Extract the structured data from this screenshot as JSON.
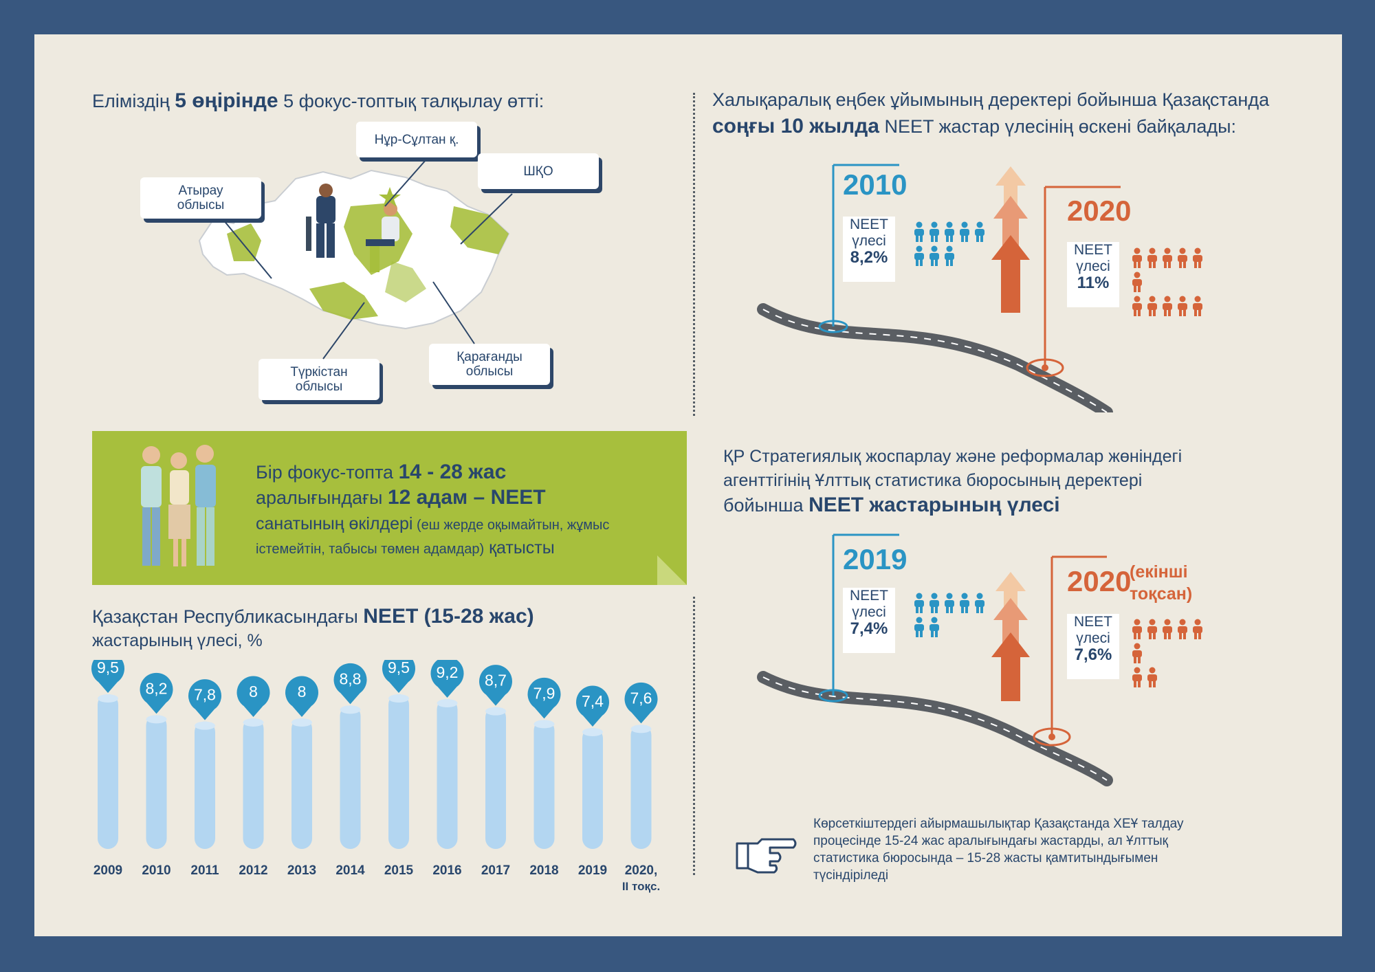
{
  "focus": {
    "title_pre": "Еліміздің ",
    "title_bold": "5 өңірінде",
    "title_post": " 5 фокус-топтық талқылау өтті:",
    "regions": {
      "nur_sultan": "Нұр-Сұлтан қ.",
      "shko": "ШҚО",
      "atyrau_1": "Атырау",
      "atyrau_2": "облысы",
      "turkistan_1": "Түркістан",
      "turkistan_2": "облысы",
      "karaganda_1": "Қарағанды",
      "karaganda_2": "облысы"
    }
  },
  "group": {
    "l1_pre": "Бір фокус-топта ",
    "l1_bold": "14 - 28 жас",
    "l2_pre": "аралығындағы ",
    "l2_bold": "12 адам",
    "l2_bold2": " – NEET",
    "l3_pre": "санатының өкілдері",
    "l3_small": " (еш жерде оқымайтын, жұмыс",
    "l4_small": "істемейтін, табысы төмен адамдар)",
    "l4_post": " қатысты"
  },
  "ilo": {
    "l1": "Халықаралық еңбек ұйымының деректері бойынша Қазақстанда",
    "l2_bold": "соңғы 10 жылда",
    "l2_post": " NEET жастар үлесінің өскені байқалады:",
    "y1": "2010",
    "y1_box": [
      "NEET",
      "үлесі",
      "8,2%"
    ],
    "y1_people": 8,
    "y2": "2020",
    "y2_box": [
      "NEET",
      "үлесі",
      "11%"
    ],
    "y2_people": 11
  },
  "stat": {
    "l1": "ҚР Стратегиялық жоспарлау және реформалар жөніндегі",
    "l2": "агенттігінің Ұлттық статистика бюросының деректері",
    "l3_pre": "бойынша ",
    "l3_bold": "NEET жастарының үлесі",
    "y1": "2019",
    "y1_box": [
      "NEET",
      "үлесі",
      "7,4%"
    ],
    "y1_people": 7,
    "y2": "2020",
    "y2_note_1": "(екінші",
    "y2_note_2": "тоқсан)",
    "y2_box": [
      "NEET",
      "үлесі",
      "7,6%"
    ],
    "y2_people": 8
  },
  "note": {
    "l1": "Көрсеткіштердегі айырмашылықтар Қазақстанда ХЕҰ талдау",
    "l2": "процесінде 15-24 жас аралығындағы жастарды, ал Ұлттық",
    "l3": "статистика бюросында – 15-28 жасты қамтитындығымен",
    "l4": "түсіндіріледі"
  },
  "colors": {
    "navy": "#28466c",
    "blue": "#2a94c4",
    "orange": "#d5643a",
    "green": "#a7bf3d",
    "bar": "#b3d6f1",
    "pin": "#2a94c4"
  },
  "chart_data": {
    "type": "bar",
    "title_pre": "Қазақстан Республикасындағы ",
    "title_bold": "NEET (15-28 жас)",
    "title_l2": "жастарының үлесі, %",
    "categories": [
      "2009",
      "2010",
      "2011",
      "2012",
      "2013",
      "2014",
      "2015",
      "2016",
      "2017",
      "2018",
      "2019",
      "2020,"
    ],
    "category_extra": "II тоқс.",
    "values": [
      9.5,
      8.2,
      7.8,
      8,
      8,
      8.8,
      9.5,
      9.2,
      8.7,
      7.9,
      7.4,
      7.6
    ],
    "labels": [
      "9,5",
      "8,2",
      "7,8",
      "8",
      "8",
      "8,8",
      "9,5",
      "9,2",
      "8,7",
      "7,9",
      "7,4",
      "7,6"
    ]
  }
}
